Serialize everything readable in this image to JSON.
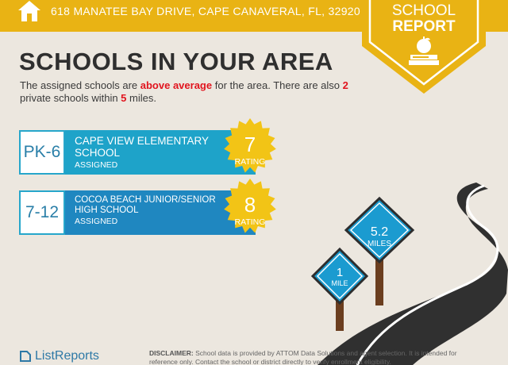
{
  "header": {
    "address": "618 MANATEE BAY DRIVE, CAPE CANAVERAL, FL, 32920",
    "badge_line1": "SCHOOL",
    "badge_line2": "REPORT"
  },
  "main": {
    "title": "SCHOOLS IN YOUR AREA",
    "intro_part1": "The assigned schools are ",
    "intro_highlight1": "above average",
    "intro_part2": " for the area. There are also ",
    "intro_highlight2": "2",
    "intro_part3": " private schools within ",
    "intro_highlight3": "5",
    "intro_part4": " miles."
  },
  "schools": [
    {
      "grade": "PK-6",
      "name": "CAPE VIEW ELEMENTARY SCHOOL",
      "status": "ASSIGNED",
      "rating": "7",
      "rating_label": "RATING"
    },
    {
      "grade": "7-12",
      "name": "COCOA BEACH JUNIOR/SENIOR HIGH SCHOOL",
      "status": "ASSIGNED",
      "rating": "8",
      "rating_label": "RATING"
    }
  ],
  "signs": [
    {
      "value": "5.2",
      "unit": "MILES"
    },
    {
      "value": "1",
      "unit": "MILE"
    }
  ],
  "footer": {
    "logo": "ListReports",
    "disclaimer_label": "DISCLAIMER:",
    "disclaimer_text": " School data is provided by ATTOM Data Solutions and agent selection. It is intended for reference only. Contact the school or district directly to verify enrollment eligibility."
  },
  "colors": {
    "accent_yellow": "#e9b314",
    "school_blue_1": "#1ea3c9",
    "school_blue_2": "#1f87c0",
    "highlight_red": "#e1141e",
    "seal_gold": "#f2c416"
  }
}
